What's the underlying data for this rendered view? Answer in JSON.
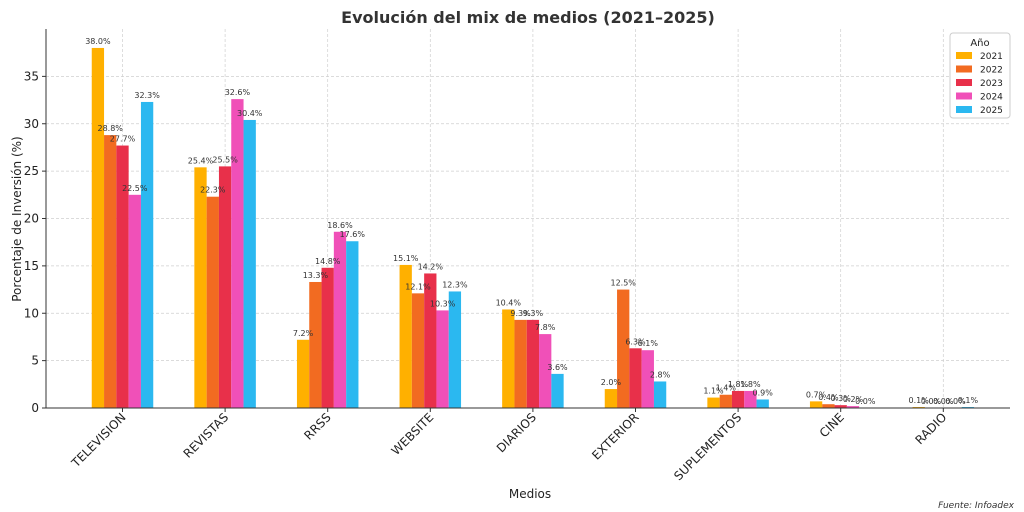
{
  "chart_data": {
    "type": "bar",
    "title": "Evolución del mix de medios (2021–2025)",
    "xlabel": "Medios",
    "ylabel": "Porcentaje de Inversión (%)",
    "ylim": [
      0,
      40
    ],
    "yticks": [
      0,
      5,
      10,
      15,
      20,
      25,
      30,
      35
    ],
    "grid": true,
    "legend_title": "Año",
    "legend_position": "top-right",
    "source": "Fuente: Infoadex",
    "categories": [
      "TELEVISION",
      "REVISTAS",
      "RRSS",
      "WEBSITE",
      "DIARIOS",
      "EXTERIOR",
      "SUPLEMENTOS",
      "CINE",
      "RADIO"
    ],
    "series": [
      {
        "name": "2021",
        "color": "#FFB000",
        "values": [
          38.0,
          25.4,
          7.2,
          15.1,
          10.4,
          2.0,
          1.1,
          0.7,
          0.1
        ]
      },
      {
        "name": "2022",
        "color": "#F26B21",
        "values": [
          28.8,
          22.3,
          13.3,
          12.1,
          9.3,
          12.5,
          1.4,
          0.4,
          0.0
        ]
      },
      {
        "name": "2023",
        "color": "#E8304A",
        "values": [
          27.7,
          25.5,
          14.8,
          14.2,
          9.3,
          6.3,
          1.8,
          0.3,
          0.0
        ]
      },
      {
        "name": "2024",
        "color": "#F050B8",
        "values": [
          22.5,
          32.6,
          18.6,
          10.3,
          7.8,
          6.1,
          1.8,
          0.2,
          0.0
        ]
      },
      {
        "name": "2025",
        "color": "#2BB8F0",
        "values": [
          32.3,
          30.4,
          17.6,
          12.3,
          3.6,
          2.8,
          0.9,
          0.0,
          0.1
        ]
      }
    ]
  }
}
